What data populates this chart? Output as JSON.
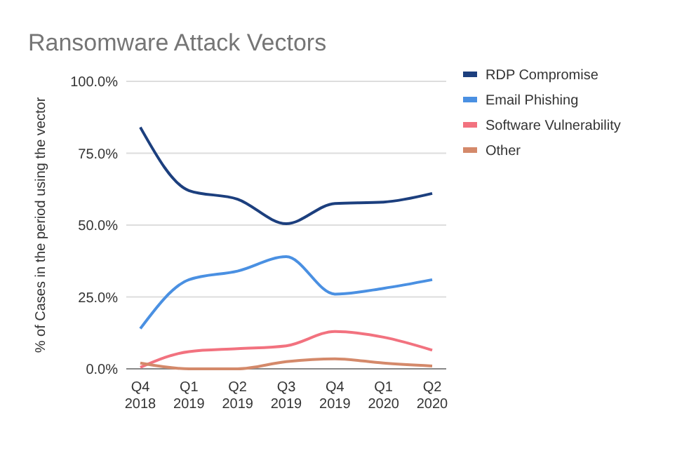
{
  "chart_data": {
    "type": "line",
    "title": "Ransomware Attack Vectors",
    "ylabel": "% of Cases in the period using the vector",
    "categories": [
      "Q4\n2018",
      "Q1\n2019",
      "Q2\n2019",
      "Q3\n2019",
      "Q4\n2019",
      "Q1\n2020",
      "Q2\n2020"
    ],
    "series": [
      {
        "name": "RDP Compromise",
        "color": "#1c3f7e",
        "values": [
          84,
          62,
          59,
          50.5,
          57.5,
          58,
          61
        ]
      },
      {
        "name": "Email Phishing",
        "color": "#4a90e2",
        "values": [
          14,
          31,
          34,
          39,
          26,
          28,
          31
        ]
      },
      {
        "name": "Software Vulnerability",
        "color": "#f2727f",
        "values": [
          0.5,
          6,
          7,
          8,
          13,
          11,
          6.5
        ]
      },
      {
        "name": "Other",
        "color": "#d4896a",
        "values": [
          2,
          0,
          0,
          2.5,
          3.5,
          2,
          1
        ]
      }
    ],
    "ylim": [
      0,
      100
    ],
    "yticks": [
      {
        "value": 0,
        "label": "0.0%"
      },
      {
        "value": 25,
        "label": "25.0%"
      },
      {
        "value": 50,
        "label": "50.0%"
      },
      {
        "value": 75,
        "label": "75.0%"
      },
      {
        "value": 100,
        "label": "100.0%"
      }
    ],
    "grid": "y",
    "legend": "right",
    "marker": "none"
  }
}
